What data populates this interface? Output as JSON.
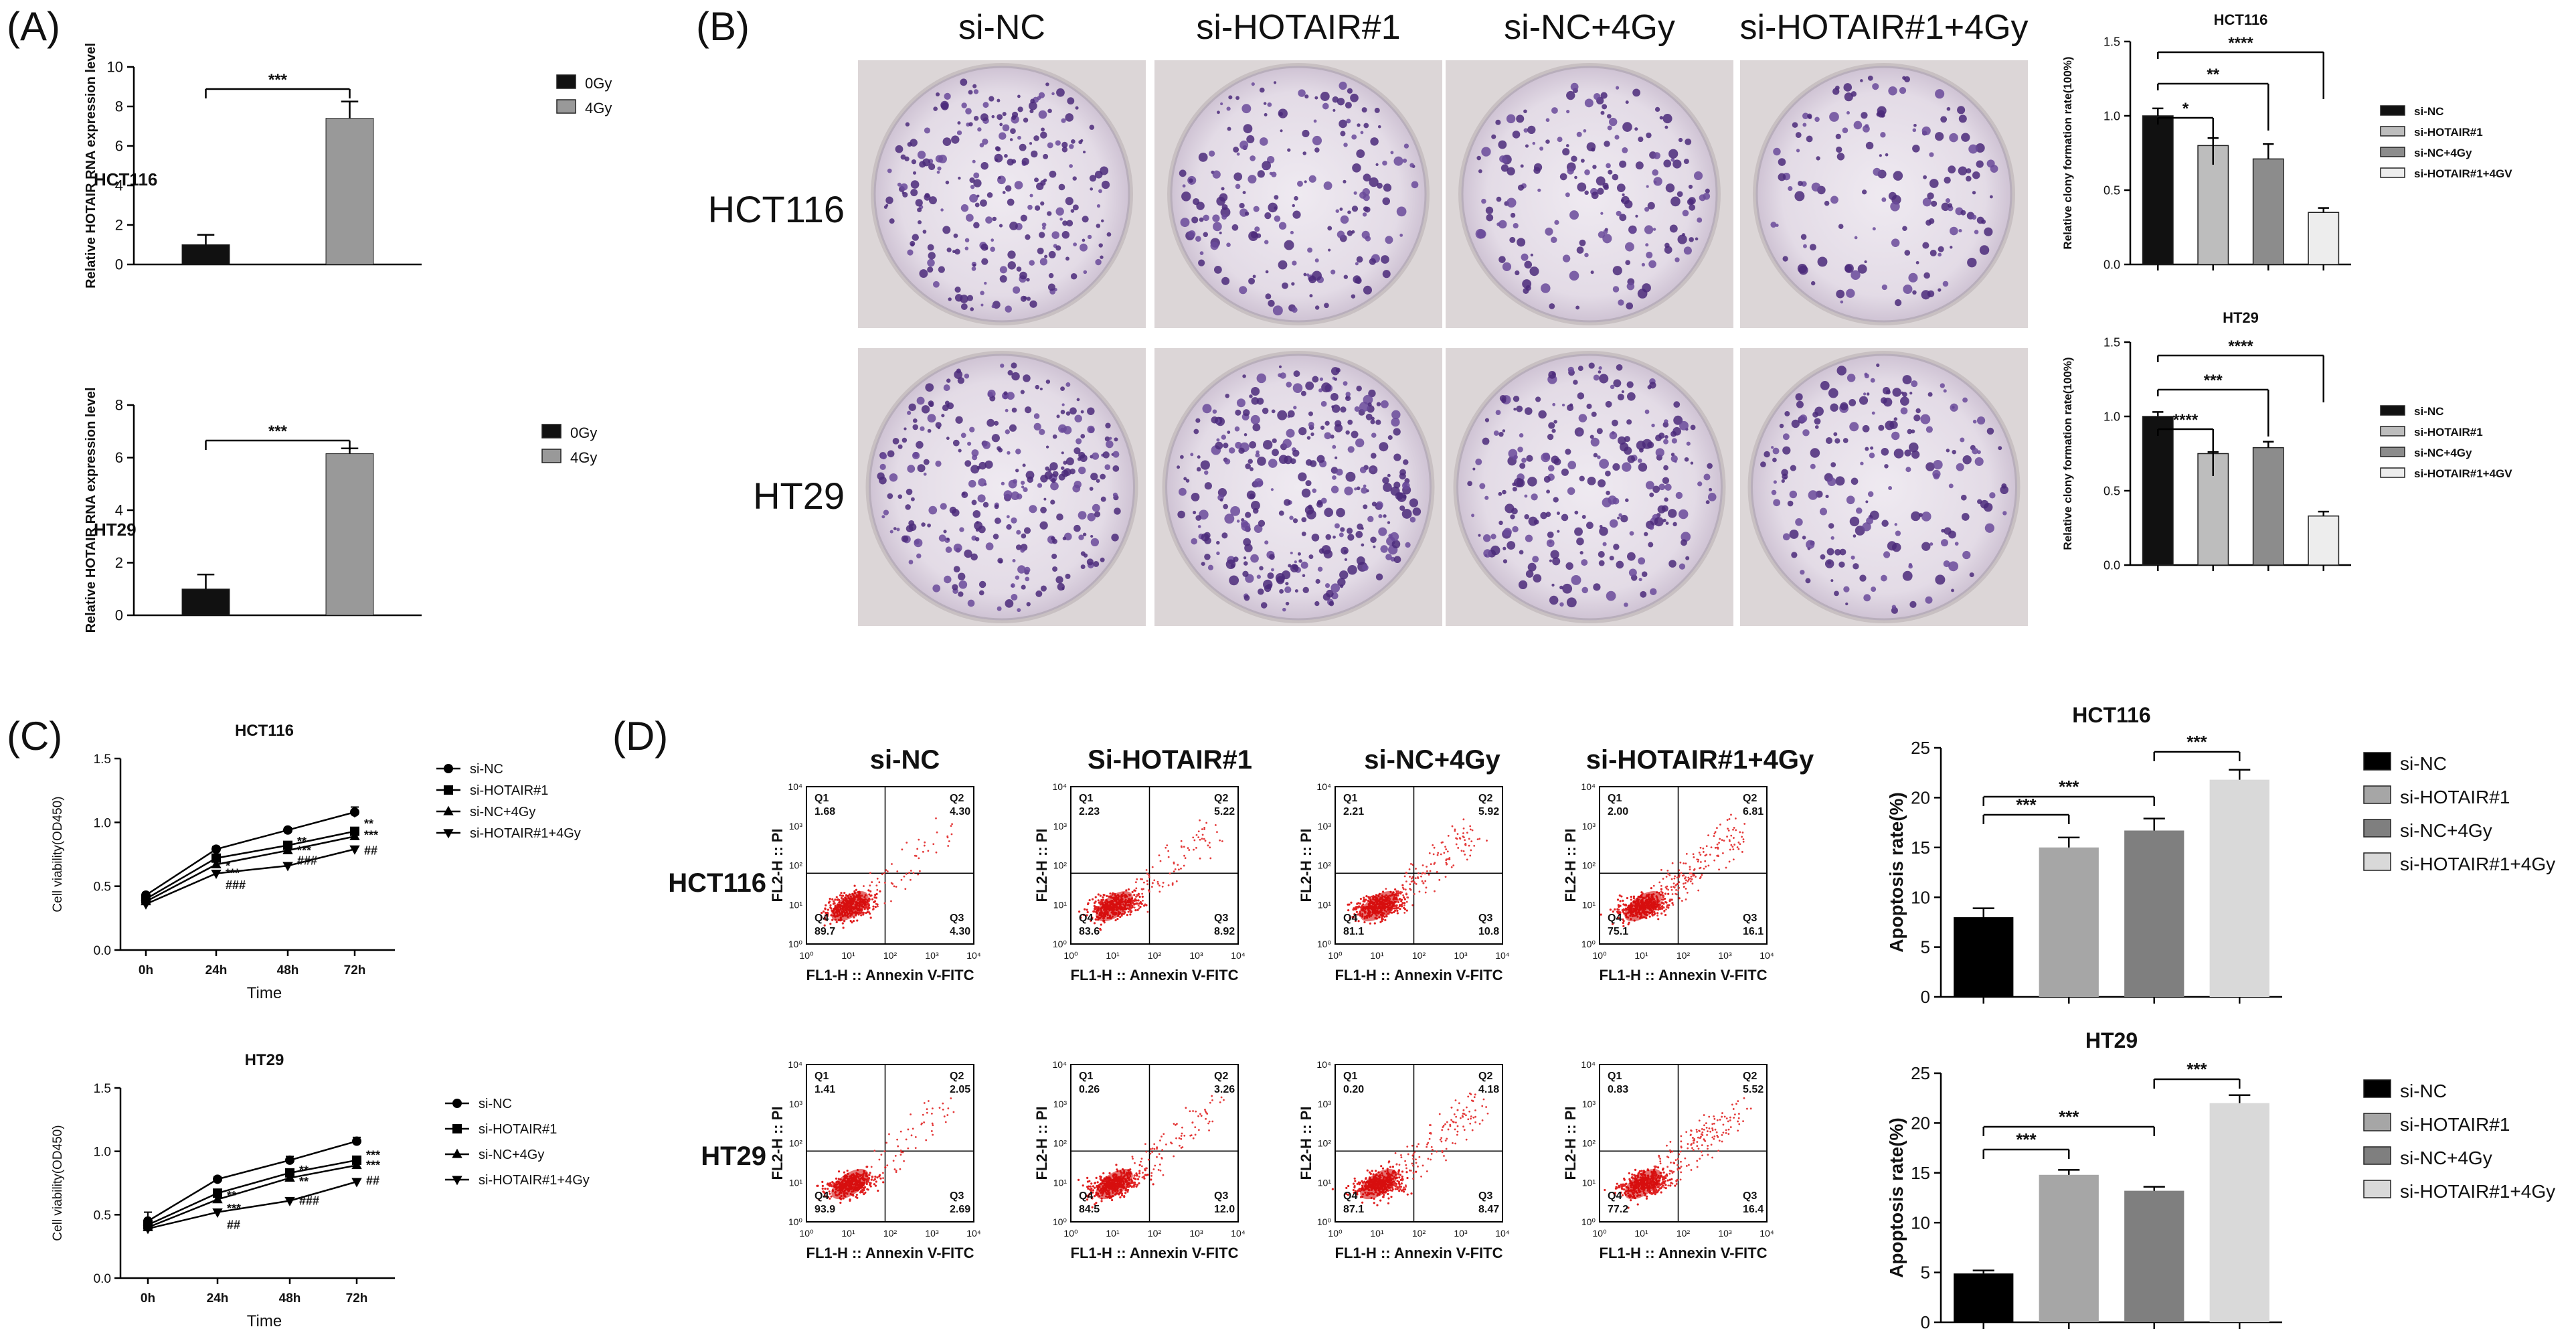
{
  "panel_labels": [
    "(A)",
    "(B)",
    "(C)",
    "(D)"
  ],
  "colony_images": {
    "row_labels": [
      "HCT116",
      "HT29"
    ],
    "column_labels": [
      "si-NC",
      "si-HOTAIR#1",
      "si-NC+4Gy",
      "si-HOTAIR#1+4Gy"
    ]
  },
  "flow": {
    "row_labels": [
      "HCT116",
      "HT29"
    ],
    "column_labels": [
      "si-NC",
      "Si-HOTAIR#1",
      "si-NC+4Gy",
      "si-HOTAIR#1+4Gy"
    ],
    "xlabel": "FL1-H :: Annexin V-FITC",
    "ylabel": "FL2-H :: PI",
    "tick_labels": [
      "10⁰",
      "10¹",
      "10²",
      "10³",
      "10⁴"
    ],
    "quadrant_names": [
      "Q1",
      "Q2",
      "Q3",
      "Q4"
    ],
    "plots": [
      [
        {
          "q1": "1.68",
          "q2": "4.30",
          "q3": "4.30",
          "q4": "89.7"
        },
        {
          "q1": "2.23",
          "q2": "5.22",
          "q3": "8.92",
          "q4": "83.6"
        },
        {
          "q1": "2.21",
          "q2": "5.92",
          "q3": "10.8",
          "q4": "81.1"
        },
        {
          "q1": "2.00",
          "q2": "6.81",
          "q3": "16.1",
          "q4": "75.1"
        }
      ],
      [
        {
          "q1": "1.41",
          "q2": "2.05",
          "q3": "2.69",
          "q4": "93.9"
        },
        {
          "q1": "0.26",
          "q2": "3.26",
          "q3": "12.0",
          "q4": "84.5"
        },
        {
          "q1": "0.20",
          "q2": "4.18",
          "q3": "8.47",
          "q4": "87.1"
        },
        {
          "q1": "0.83",
          "q2": "5.52",
          "q3": "16.4",
          "q4": "77.2"
        }
      ]
    ]
  },
  "chart_data": [
    {
      "id": "A1",
      "type": "bar",
      "title": "",
      "inner_label": "HCT116",
      "ylabel": "Relative HOTAIR RNA expression level",
      "xlabel": "",
      "ylim": [
        0,
        10
      ],
      "yticks": [
        0,
        2,
        4,
        6,
        8,
        10
      ],
      "categories": [
        "0Gy",
        "4Gy"
      ],
      "values": [
        1.0,
        7.4
      ],
      "errors": [
        0.5,
        0.85
      ],
      "colors": [
        "#111111",
        "#999999"
      ],
      "legend": [
        "0Gy",
        "4Gy"
      ],
      "significance": [
        {
          "from": 0,
          "to": 1,
          "label": "***"
        }
      ]
    },
    {
      "id": "A2",
      "type": "bar",
      "title": "",
      "inner_label": "HT29",
      "ylabel": "Relative HOTAIR RNA expression level",
      "xlabel": "",
      "ylim": [
        0,
        8
      ],
      "yticks": [
        0,
        2,
        4,
        6,
        8
      ],
      "categories": [
        "0Gy",
        "4Gy"
      ],
      "values": [
        1.0,
        6.15
      ],
      "errors": [
        0.55,
        0.2
      ],
      "colors": [
        "#111111",
        "#999999"
      ],
      "legend": [
        "0Gy",
        "4Gy"
      ],
      "significance": [
        {
          "from": 0,
          "to": 1,
          "label": "***"
        }
      ]
    },
    {
      "id": "B1",
      "type": "bar",
      "title": "HCT116",
      "inner_label": "",
      "ylabel": "Relative clony formation rate(100%)",
      "xlabel": "",
      "ylim": [
        0,
        1.5
      ],
      "yticks": [
        0.0,
        0.5,
        1.0,
        1.5
      ],
      "categories": [
        "si-NC",
        "si-HOTAIR#1",
        "si-NC+4Gy",
        "si-HOTAIR#1+4GV"
      ],
      "values": [
        1.0,
        0.8,
        0.71,
        0.35
      ],
      "errors": [
        0.05,
        0.05,
        0.1,
        0.03
      ],
      "colors": [
        "#111111",
        "#bdbdbd",
        "#8c8c8c",
        "#ededed"
      ],
      "legend": [
        "si-NC",
        "si-HOTAIR#1",
        "si-NC+4Gy",
        "si-HOTAIR#1+4GV"
      ],
      "significance": [
        {
          "from": 0,
          "to": 1,
          "label": "*"
        },
        {
          "from": 0,
          "to": 2,
          "label": "**"
        },
        {
          "from": 0,
          "to": 3,
          "label": "****"
        }
      ]
    },
    {
      "id": "B2",
      "type": "bar",
      "title": "HT29",
      "inner_label": "",
      "ylabel": "Relative clony formation rate(100%)",
      "xlabel": "",
      "ylim": [
        0,
        1.5
      ],
      "yticks": [
        0.0,
        0.5,
        1.0,
        1.5
      ],
      "categories": [
        "si-NC",
        "si-HOTAIR#1",
        "si-NC+4Gy",
        "si-HOTAIR#1+4GV"
      ],
      "values": [
        1.0,
        0.75,
        0.79,
        0.33
      ],
      "errors": [
        0.03,
        0.01,
        0.04,
        0.03
      ],
      "colors": [
        "#111111",
        "#bdbdbd",
        "#8c8c8c",
        "#ededed"
      ],
      "legend": [
        "si-NC",
        "si-HOTAIR#1",
        "si-NC+4Gy",
        "si-HOTAIR#1+4GV"
      ],
      "significance": [
        {
          "from": 0,
          "to": 1,
          "label": "****"
        },
        {
          "from": 0,
          "to": 2,
          "label": "***"
        },
        {
          "from": 0,
          "to": 3,
          "label": "****"
        }
      ]
    },
    {
      "id": "C1",
      "type": "line",
      "title": "HCT116",
      "xlabel": "Time",
      "ylabel": "Cell viability(OD450)",
      "x": [
        "0h",
        "24h",
        "48h",
        "72h"
      ],
      "ylim": [
        0,
        1.5
      ],
      "yticks": [
        0.0,
        0.5,
        1.0,
        1.5
      ],
      "series": [
        {
          "name": "si-NC",
          "marker": "circle",
          "values": [
            0.43,
            0.79,
            0.94,
            1.08
          ],
          "errors": [
            0.02,
            0.02,
            0.02,
            0.04
          ]
        },
        {
          "name": "si-HOTAIR#1",
          "marker": "square",
          "values": [
            0.4,
            0.72,
            0.82,
            0.93
          ],
          "errors": [
            0.02,
            0.02,
            0.02,
            0.02
          ]
        },
        {
          "name": "si-NC+4Gy",
          "marker": "triangle-up",
          "values": [
            0.38,
            0.67,
            0.78,
            0.89
          ],
          "errors": [
            0.02,
            0.02,
            0.02,
            0.02
          ]
        },
        {
          "name": "si-HOTAIR#1+4Gy",
          "marker": "triangle-down",
          "values": [
            0.36,
            0.6,
            0.66,
            0.79
          ],
          "errors": [
            0.02,
            0.02,
            0.02,
            0.02
          ]
        }
      ],
      "annotations": [
        {
          "x": 1,
          "y": 0.67,
          "label": "*"
        },
        {
          "x": 1,
          "y": 0.61,
          "label": "***"
        },
        {
          "x": 1,
          "y": 0.52,
          "label": "###"
        },
        {
          "x": 2,
          "y": 0.86,
          "label": "**"
        },
        {
          "x": 2,
          "y": 0.79,
          "label": "***"
        },
        {
          "x": 2,
          "y": 0.71,
          "label": "###"
        },
        {
          "x": 3,
          "y": 1.0,
          "label": "**"
        },
        {
          "x": 3,
          "y": 0.91,
          "label": "***"
        },
        {
          "x": 3,
          "y": 0.79,
          "label": "##"
        }
      ]
    },
    {
      "id": "C2",
      "type": "line",
      "title": "HT29",
      "xlabel": "Time",
      "ylabel": "Cell viability(OD450)",
      "x": [
        "0h",
        "24h",
        "48h",
        "72h"
      ],
      "ylim": [
        0,
        1.5
      ],
      "yticks": [
        0.0,
        0.5,
        1.0,
        1.5
      ],
      "series": [
        {
          "name": "si-NC",
          "marker": "circle",
          "values": [
            0.45,
            0.78,
            0.93,
            1.08
          ],
          "errors": [
            0.07,
            0.02,
            0.03,
            0.03
          ]
        },
        {
          "name": "si-HOTAIR#1",
          "marker": "square",
          "values": [
            0.42,
            0.67,
            0.83,
            0.93
          ],
          "errors": [
            0.05,
            0.02,
            0.02,
            0.02
          ]
        },
        {
          "name": "si-NC+4Gy",
          "marker": "triangle-up",
          "values": [
            0.4,
            0.62,
            0.79,
            0.89
          ],
          "errors": [
            0.03,
            0.02,
            0.02,
            0.02
          ]
        },
        {
          "name": "si-HOTAIR#1+4Gy",
          "marker": "triangle-down",
          "values": [
            0.39,
            0.52,
            0.61,
            0.76
          ],
          "errors": [
            0.03,
            0.02,
            0.02,
            0.02
          ]
        }
      ],
      "annotations": [
        {
          "x": 1,
          "y": 0.66,
          "label": "**"
        },
        {
          "x": 1,
          "y": 0.56,
          "label": "***"
        },
        {
          "x": 1,
          "y": 0.43,
          "label": "##"
        },
        {
          "x": 2,
          "y": 0.86,
          "label": "**"
        },
        {
          "x": 2,
          "y": 0.77,
          "label": "**"
        },
        {
          "x": 2,
          "y": 0.62,
          "label": "###"
        },
        {
          "x": 3,
          "y": 0.98,
          "label": "***"
        },
        {
          "x": 3,
          "y": 0.9,
          "label": "***"
        },
        {
          "x": 3,
          "y": 0.78,
          "label": "##"
        }
      ]
    },
    {
      "id": "D1",
      "type": "bar",
      "title": "HCT116",
      "ylabel": "Apoptosis rate(%)",
      "xlabel": "",
      "ylim": [
        0,
        25
      ],
      "yticks": [
        0,
        5,
        10,
        15,
        20,
        25
      ],
      "categories": [
        "si-NC",
        "si-HOTAIR#1",
        "si-NC+4Gy",
        "si-HOTAIR#1+4Gy"
      ],
      "values": [
        8.0,
        15.0,
        16.7,
        21.8
      ],
      "errors": [
        0.9,
        1.0,
        1.2,
        1.0
      ],
      "colors": [
        "#000000",
        "#a6a6a6",
        "#7f7f7f",
        "#d9d9d9"
      ],
      "legend": [
        "si-NC",
        "si-HOTAIR#1",
        "si-NC+4Gy",
        "si-HOTAIR#1+4Gy"
      ],
      "significance": [
        {
          "from": 0,
          "to": 1,
          "label": "***"
        },
        {
          "from": 0,
          "to": 2,
          "label": "***"
        },
        {
          "from": 2,
          "to": 3,
          "label": "***"
        }
      ]
    },
    {
      "id": "D2",
      "type": "bar",
      "title": "HT29",
      "ylabel": "Apoptosis rate(%)",
      "xlabel": "",
      "ylim": [
        0,
        25
      ],
      "yticks": [
        0,
        5,
        10,
        15,
        20,
        25
      ],
      "categories": [
        "si-NC",
        "si-HOTAIR#1",
        "si-NC+4Gy",
        "si-HOTAIR#1+4Gy"
      ],
      "values": [
        4.9,
        14.8,
        13.2,
        22.0
      ],
      "errors": [
        0.3,
        0.5,
        0.4,
        0.8
      ],
      "colors": [
        "#000000",
        "#a6a6a6",
        "#7f7f7f",
        "#d9d9d9"
      ],
      "legend": [
        "si-NC",
        "si-HOTAIR#1",
        "si-NC+4Gy",
        "si-HOTAIR#1+4Gy"
      ],
      "significance": [
        {
          "from": 0,
          "to": 1,
          "label": "***"
        },
        {
          "from": 0,
          "to": 2,
          "label": "***"
        },
        {
          "from": 2,
          "to": 3,
          "label": "***"
        }
      ]
    }
  ]
}
